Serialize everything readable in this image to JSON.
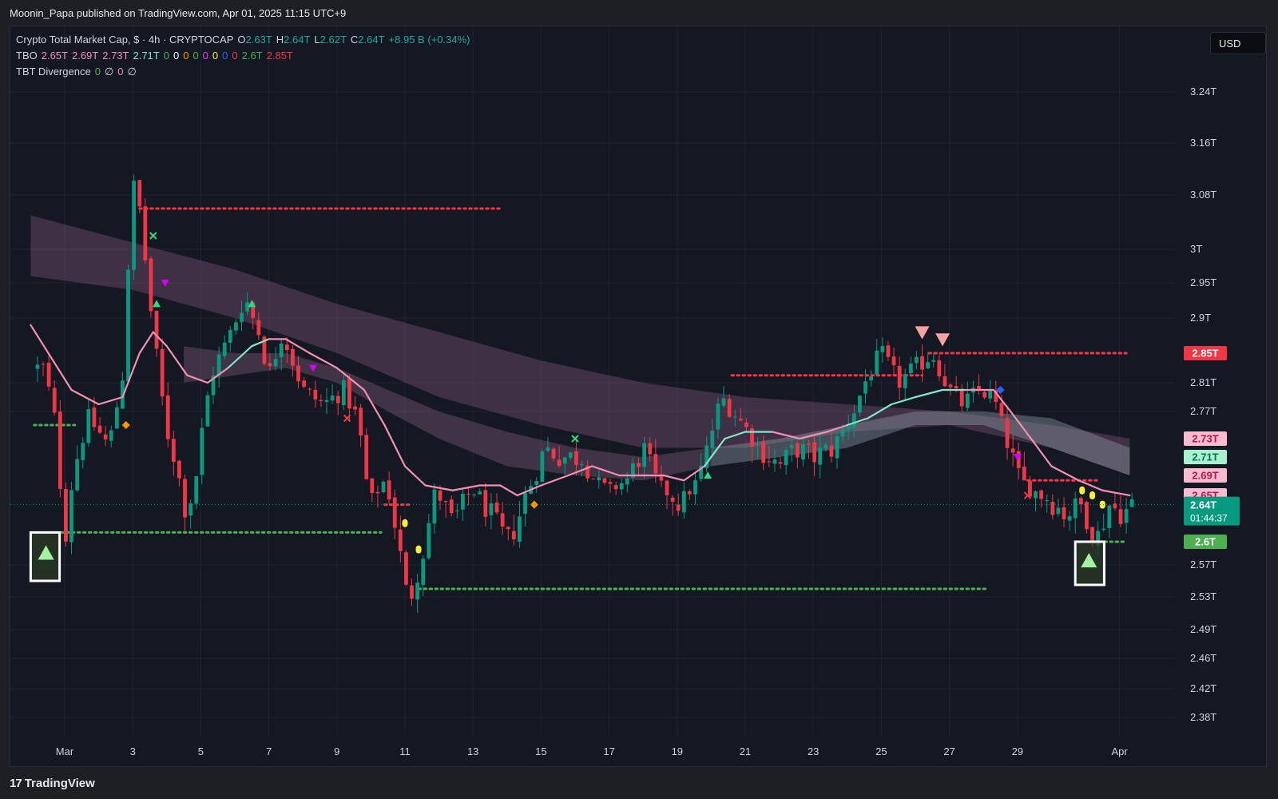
{
  "header": {
    "publisher": "Moonin_Papa published on TradingView.com, Apr 01, 2025 11:15 UTC+9"
  },
  "legend": {
    "symbol_line": [
      {
        "text": "Crypto Total Market Cap, $ · 4h · CRYPTOCAP",
        "color": "#d1d4dc"
      },
      {
        "text": "O",
        "color": "#d1d4dc"
      },
      {
        "text": "2.63T",
        "color": "#26a69a"
      },
      {
        "text": "H",
        "color": "#d1d4dc"
      },
      {
        "text": "2.64T",
        "color": "#26a69a"
      },
      {
        "text": "L",
        "color": "#d1d4dc"
      },
      {
        "text": "2.62T",
        "color": "#26a69a"
      },
      {
        "text": "C",
        "color": "#d1d4dc"
      },
      {
        "text": "2.64T",
        "color": "#26a69a"
      },
      {
        "text": "+8.95 B (+0.34%)",
        "color": "#26a69a"
      }
    ],
    "tbo_line": [
      {
        "text": "TBO",
        "color": "#d1d4dc"
      },
      {
        "text": "2.65T",
        "color": "#f48fb1"
      },
      {
        "text": "2.69T",
        "color": "#f48fb1"
      },
      {
        "text": "2.73T",
        "color": "#f48fb1"
      },
      {
        "text": "2.71T",
        "color": "#80e8c8"
      },
      {
        "text": "0",
        "color": "#4caf50"
      },
      {
        "text": "0",
        "color": "#ffffff"
      },
      {
        "text": "0",
        "color": "#ff9800"
      },
      {
        "text": "0",
        "color": "#4caf50"
      },
      {
        "text": "0",
        "color": "#e040fb"
      },
      {
        "text": "0",
        "color": "#ffeb3b"
      },
      {
        "text": "0",
        "color": "#2962ff"
      },
      {
        "text": "0",
        "color": "#f23645"
      },
      {
        "text": "2.6T",
        "color": "#4caf50"
      },
      {
        "text": "2.85T",
        "color": "#f23645"
      }
    ],
    "divergence_line": [
      {
        "text": "TBT Divergence",
        "color": "#d1d4dc"
      },
      {
        "text": "0",
        "color": "#4caf50"
      },
      {
        "text": "∅",
        "color": "#d1d4dc"
      },
      {
        "text": "0",
        "color": "#f48fb1"
      },
      {
        "text": "∅",
        "color": "#d1d4dc"
      }
    ]
  },
  "currency_button": "USD",
  "footer": {
    "brand": "TradingView",
    "brand_mark": "17"
  },
  "chart_data": {
    "type": "candlestick",
    "symbol": "CRYPTOCAP",
    "timeframe": "4h",
    "yunit": "trillion USD",
    "ylim": [
      2.36,
      3.28
    ],
    "y_ticks": [
      {
        "value": 3.24,
        "label": "3.24T"
      },
      {
        "value": 3.16,
        "label": "3.16T"
      },
      {
        "value": 3.08,
        "label": "3.08T"
      },
      {
        "value": 3.0,
        "label": "3T"
      },
      {
        "value": 2.95,
        "label": "2.95T"
      },
      {
        "value": 2.9,
        "label": "2.9T"
      },
      {
        "value": 2.81,
        "label": "2.81T"
      },
      {
        "value": 2.77,
        "label": "2.77T"
      },
      {
        "value": 2.57,
        "label": "2.57T"
      },
      {
        "value": 2.53,
        "label": "2.53T"
      },
      {
        "value": 2.49,
        "label": "2.49T"
      },
      {
        "value": 2.46,
        "label": "2.46T"
      },
      {
        "value": 2.42,
        "label": "2.42T"
      },
      {
        "value": 2.38,
        "label": "2.38T"
      }
    ],
    "x_ticks": [
      {
        "day": 1,
        "label": "Mar"
      },
      {
        "day": 3,
        "label": "3"
      },
      {
        "day": 5,
        "label": "5"
      },
      {
        "day": 7,
        "label": "7"
      },
      {
        "day": 9,
        "label": "9"
      },
      {
        "day": 11,
        "label": "11"
      },
      {
        "day": 13,
        "label": "13"
      },
      {
        "day": 15,
        "label": "15"
      },
      {
        "day": 17,
        "label": "17"
      },
      {
        "day": 19,
        "label": "19"
      },
      {
        "day": 21,
        "label": "21"
      },
      {
        "day": 23,
        "label": "23"
      },
      {
        "day": 25,
        "label": "25"
      },
      {
        "day": 27,
        "label": "27"
      },
      {
        "day": 29,
        "label": "29"
      },
      {
        "day": 32,
        "label": "Apr"
      }
    ],
    "price_anchors": [
      [
        0.4,
        2.83
      ],
      [
        0.7,
        2.76
      ],
      [
        1.0,
        2.6
      ],
      [
        1.3,
        2.7
      ],
      [
        1.7,
        2.76
      ],
      [
        2.3,
        2.72
      ],
      [
        2.7,
        2.82
      ],
      [
        3.0,
        3.1
      ],
      [
        3.2,
        3.06
      ],
      [
        3.6,
        2.88
      ],
      [
        4.0,
        2.74
      ],
      [
        4.3,
        2.7
      ],
      [
        4.6,
        2.62
      ],
      [
        4.9,
        2.7
      ],
      [
        5.3,
        2.82
      ],
      [
        5.8,
        2.87
      ],
      [
        6.3,
        2.93
      ],
      [
        6.7,
        2.88
      ],
      [
        7.0,
        2.82
      ],
      [
        7.4,
        2.88
      ],
      [
        8.0,
        2.8
      ],
      [
        8.6,
        2.78
      ],
      [
        9.2,
        2.8
      ],
      [
        9.6,
        2.76
      ],
      [
        10.0,
        2.64
      ],
      [
        10.4,
        2.68
      ],
      [
        10.8,
        2.6
      ],
      [
        11.1,
        2.52
      ],
      [
        11.5,
        2.58
      ],
      [
        11.9,
        2.66
      ],
      [
        12.4,
        2.62
      ],
      [
        13.0,
        2.66
      ],
      [
        13.5,
        2.63
      ],
      [
        14.0,
        2.6
      ],
      [
        14.3,
        2.62
      ],
      [
        14.6,
        2.66
      ],
      [
        15.1,
        2.72
      ],
      [
        15.6,
        2.71
      ],
      [
        16.2,
        2.71
      ],
      [
        16.6,
        2.68
      ],
      [
        17.0,
        2.66
      ],
      [
        17.5,
        2.68
      ],
      [
        18.0,
        2.72
      ],
      [
        18.6,
        2.66
      ],
      [
        19.1,
        2.64
      ],
      [
        19.5,
        2.67
      ],
      [
        19.9,
        2.72
      ],
      [
        20.3,
        2.79
      ],
      [
        20.8,
        2.76
      ],
      [
        21.4,
        2.72
      ],
      [
        22.0,
        2.7
      ],
      [
        22.5,
        2.72
      ],
      [
        23.0,
        2.71
      ],
      [
        23.6,
        2.72
      ],
      [
        24.1,
        2.76
      ],
      [
        24.6,
        2.82
      ],
      [
        25.0,
        2.85
      ],
      [
        25.5,
        2.81
      ],
      [
        26.0,
        2.83
      ],
      [
        26.5,
        2.85
      ],
      [
        27.0,
        2.8
      ],
      [
        27.4,
        2.78
      ],
      [
        27.9,
        2.8
      ],
      [
        28.3,
        2.79
      ],
      [
        28.6,
        2.74
      ],
      [
        29.0,
        2.69
      ],
      [
        29.4,
        2.66
      ],
      [
        29.8,
        2.65
      ],
      [
        30.4,
        2.63
      ],
      [
        30.9,
        2.64
      ],
      [
        31.3,
        2.6
      ],
      [
        31.7,
        2.64
      ],
      [
        32.1,
        2.63
      ],
      [
        32.4,
        2.64
      ]
    ],
    "tbo_line": [
      [
        0.0,
        2.89
      ],
      [
        1.2,
        2.8
      ],
      [
        2.0,
        2.78
      ],
      [
        2.7,
        2.79
      ],
      [
        3.2,
        2.85
      ],
      [
        3.6,
        2.88
      ],
      [
        4.0,
        2.86
      ],
      [
        4.6,
        2.82
      ],
      [
        5.2,
        2.81
      ],
      [
        5.8,
        2.83
      ],
      [
        6.5,
        2.86
      ],
      [
        7.0,
        2.87
      ],
      [
        7.5,
        2.87
      ],
      [
        8.2,
        2.85
      ],
      [
        9.0,
        2.83
      ],
      [
        9.8,
        2.8
      ],
      [
        10.4,
        2.75
      ],
      [
        11.0,
        2.7
      ],
      [
        11.6,
        2.67
      ],
      [
        12.4,
        2.66
      ],
      [
        13.2,
        2.67
      ],
      [
        13.8,
        2.67
      ],
      [
        14.3,
        2.65
      ],
      [
        15.0,
        2.67
      ],
      [
        15.8,
        2.69
      ],
      [
        16.5,
        2.7
      ],
      [
        17.3,
        2.69
      ],
      [
        18.0,
        2.69
      ],
      [
        18.6,
        2.69
      ],
      [
        19.2,
        2.68
      ],
      [
        19.8,
        2.7
      ],
      [
        20.4,
        2.73
      ],
      [
        21.0,
        2.74
      ],
      [
        21.8,
        2.74
      ],
      [
        22.6,
        2.73
      ],
      [
        23.4,
        2.74
      ],
      [
        24.0,
        2.75
      ],
      [
        24.6,
        2.76
      ],
      [
        25.3,
        2.78
      ],
      [
        26.0,
        2.79
      ],
      [
        26.8,
        2.8
      ],
      [
        27.5,
        2.8
      ],
      [
        28.3,
        2.8
      ],
      [
        28.8,
        2.77
      ],
      [
        29.4,
        2.73
      ],
      [
        30.0,
        2.7
      ],
      [
        30.8,
        2.68
      ],
      [
        31.5,
        2.66
      ],
      [
        32.3,
        2.65
      ]
    ],
    "cloud_outer": {
      "upper": [
        [
          0.0,
          3.05
        ],
        [
          3.0,
          3.01
        ],
        [
          6.0,
          2.97
        ],
        [
          9.0,
          2.92
        ],
        [
          12.0,
          2.88
        ],
        [
          15.0,
          2.84
        ],
        [
          18.0,
          2.81
        ],
        [
          21.0,
          2.79
        ],
        [
          24.0,
          2.78
        ],
        [
          27.0,
          2.77
        ],
        [
          30.0,
          2.75
        ],
        [
          32.3,
          2.73
        ]
      ],
      "lower": [
        [
          0.0,
          2.96
        ],
        [
          3.0,
          2.94
        ],
        [
          6.0,
          2.9
        ],
        [
          9.0,
          2.85
        ],
        [
          12.0,
          2.79
        ],
        [
          15.0,
          2.75
        ],
        [
          18.0,
          2.72
        ],
        [
          21.0,
          2.72
        ],
        [
          24.0,
          2.74
        ],
        [
          27.0,
          2.75
        ],
        [
          30.0,
          2.72
        ],
        [
          32.3,
          2.69
        ]
      ]
    },
    "cloud_inner": {
      "upper": [
        [
          4.5,
          2.86
        ],
        [
          6.0,
          2.85
        ],
        [
          7.5,
          2.85
        ],
        [
          9.0,
          2.83
        ],
        [
          10.5,
          2.8
        ],
        [
          12.0,
          2.77
        ],
        [
          14.0,
          2.74
        ],
        [
          16.0,
          2.72
        ],
        [
          18.0,
          2.71
        ],
        [
          20.0,
          2.72
        ],
        [
          22.0,
          2.73
        ],
        [
          24.0,
          2.75
        ],
        [
          26.0,
          2.77
        ],
        [
          28.0,
          2.77
        ],
        [
          30.0,
          2.76
        ],
        [
          32.3,
          2.72
        ]
      ],
      "lower": [
        [
          4.5,
          2.81
        ],
        [
          6.0,
          2.82
        ],
        [
          7.5,
          2.83
        ],
        [
          9.0,
          2.81
        ],
        [
          10.5,
          2.77
        ],
        [
          12.0,
          2.73
        ],
        [
          14.0,
          2.7
        ],
        [
          16.0,
          2.69
        ],
        [
          18.0,
          2.68
        ],
        [
          20.0,
          2.7
        ],
        [
          22.0,
          2.71
        ],
        [
          24.0,
          2.72
        ],
        [
          26.0,
          2.75
        ],
        [
          28.0,
          2.75
        ],
        [
          30.0,
          2.72
        ],
        [
          32.3,
          2.69
        ]
      ]
    },
    "levels": [
      {
        "value": 3.06,
        "from": 3.2,
        "to": 13.8,
        "color": "#f23645",
        "style": "dotted"
      },
      {
        "value": 2.82,
        "from": 20.6,
        "to": 26.2,
        "color": "#f23645",
        "style": "dotted"
      },
      {
        "value": 2.85,
        "from": 26.4,
        "to": 32.2,
        "color": "#f23645",
        "style": "dotted"
      },
      {
        "value": 2.68,
        "from": 29.3,
        "to": 31.4,
        "color": "#f23645",
        "style": "dotted"
      },
      {
        "value": 2.64,
        "from": 10.4,
        "to": 11.2,
        "color": "#f23645",
        "style": "dotted"
      },
      {
        "value": 2.75,
        "from": 0.1,
        "to": 1.3,
        "color": "#4caf50",
        "style": "dotted"
      },
      {
        "value": 2.61,
        "from": 0.4,
        "to": 10.3,
        "color": "#4caf50",
        "style": "dotted"
      },
      {
        "value": 2.54,
        "from": 11.4,
        "to": 28.1,
        "color": "#4caf50",
        "style": "dotted"
      },
      {
        "value": 2.6,
        "from": 31.4,
        "to": 32.2,
        "color": "#4caf50",
        "style": "dotted"
      }
    ],
    "signals": [
      {
        "type": "tri-up",
        "day": 3.7,
        "value": 2.92,
        "color": "#26de81",
        "size": 5
      },
      {
        "type": "tri-up",
        "day": 6.5,
        "value": 2.92,
        "color": "#26de81",
        "size": 5
      },
      {
        "type": "tri-up",
        "day": 19.9,
        "value": 2.69,
        "color": "#26de81",
        "size": 5
      },
      {
        "type": "tri-down",
        "day": 3.95,
        "value": 2.95,
        "color": "#d500f9",
        "size": 5
      },
      {
        "type": "tri-down",
        "day": 8.3,
        "value": 2.83,
        "color": "#d500f9",
        "size": 5
      },
      {
        "type": "tri-down",
        "day": 29.0,
        "value": 2.71,
        "color": "#d500f9",
        "size": 5
      },
      {
        "type": "tri-down",
        "day": 26.2,
        "value": 2.88,
        "color": "#f7a1a1",
        "size": 9
      },
      {
        "type": "tri-down",
        "day": 26.8,
        "value": 2.87,
        "color": "#f7a1a1",
        "size": 9
      },
      {
        "type": "x",
        "day": 3.6,
        "value": 3.02,
        "color": "#26de81"
      },
      {
        "type": "x",
        "day": 16.0,
        "value": 2.73,
        "color": "#26de81"
      },
      {
        "type": "x",
        "day": 9.3,
        "value": 2.76,
        "color": "#f23645"
      },
      {
        "type": "x",
        "day": 29.3,
        "value": 2.65,
        "color": "#f23645"
      },
      {
        "type": "diamond",
        "day": 2.8,
        "value": 2.75,
        "color": "#ff9800"
      },
      {
        "type": "diamond",
        "day": 14.8,
        "value": 2.64,
        "color": "#ff9800"
      },
      {
        "type": "diamond",
        "day": 28.5,
        "value": 2.8,
        "color": "#2962ff"
      },
      {
        "type": "drop",
        "day": 11.0,
        "value": 2.62,
        "color": "#ffeb3b"
      },
      {
        "type": "drop",
        "day": 11.4,
        "value": 2.59,
        "color": "#ffeb3b"
      },
      {
        "type": "drop",
        "day": 30.9,
        "value": 2.66,
        "color": "#ffeb3b"
      },
      {
        "type": "drop",
        "day": 31.2,
        "value": 2.65,
        "color": "#ffeb3b"
      },
      {
        "type": "drop",
        "day": 31.5,
        "value": 2.64,
        "color": "#ffeb3b"
      }
    ],
    "highlight_boxes": [
      {
        "day_from": 0.0,
        "day_to": 0.85,
        "value_top": 2.61,
        "value_bottom": 2.55,
        "marker_day": 0.45,
        "marker_value": 2.585
      },
      {
        "day_from": 30.7,
        "day_to": 31.55,
        "value_top": 2.6,
        "value_bottom": 2.545,
        "marker_day": 31.1,
        "marker_value": 2.575
      }
    ],
    "last_price": {
      "value": 2.64,
      "label": "2.64T",
      "countdown": "01:44:37",
      "color": "#089981"
    },
    "price_labels": [
      {
        "value": 2.85,
        "label": "2.85T",
        "bg": "#f23645",
        "fg": "#ffffff"
      },
      {
        "value": 2.73,
        "label": "2.73T",
        "bg": "#f8bbd0",
        "fg": "#b2184e"
      },
      {
        "value": 2.71,
        "label": "2.71T",
        "bg": "#a7f3d0",
        "fg": "#0b6e4f"
      },
      {
        "value": 2.69,
        "label": "2.69T",
        "bg": "#f8bbd0",
        "fg": "#b2184e"
      },
      {
        "value": 2.65,
        "label": "2.65T",
        "bg": "#f8bbd0",
        "fg": "#b2184e"
      },
      {
        "value": 2.6,
        "label": "2.6T",
        "bg": "#4caf50",
        "fg": "#ffffff"
      }
    ],
    "colors": {
      "up": "#089981",
      "down": "#f23645",
      "tbo_down": "#f48fb1",
      "tbo_up": "#80e8c8"
    }
  }
}
